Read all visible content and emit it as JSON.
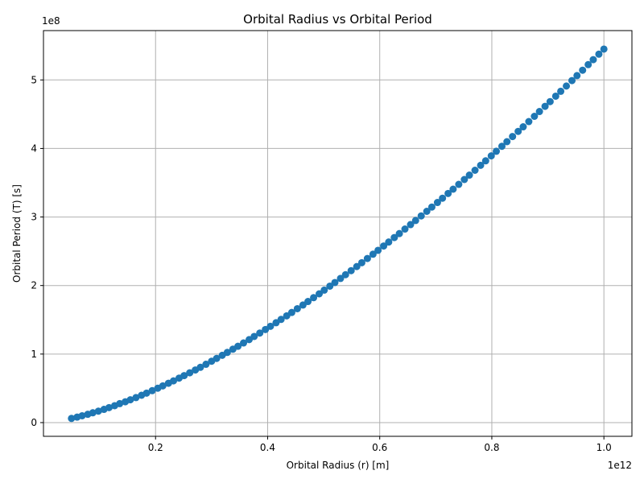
{
  "chart_data": {
    "type": "scatter",
    "title": "Orbital Radius vs Orbital Period",
    "xlabel": "Orbital Radius (r) [m]",
    "ylabel": "Orbital Period (T) [s]",
    "x_offset_text": "1e12",
    "y_offset_text": "1e8",
    "xlim": [
      0,
      1.05
    ],
    "ylim": [
      -0.2,
      5.72
    ],
    "x_scale_multiplier": 1000000000000.0,
    "y_scale_multiplier": 100000000.0,
    "xticks": [
      0.2,
      0.4,
      0.6,
      0.8,
      1.0
    ],
    "xtick_labels": [
      "0.2",
      "0.4",
      "0.6",
      "0.8",
      "1.0"
    ],
    "yticks": [
      0,
      1,
      2,
      3,
      4,
      5
    ],
    "ytick_labels": [
      "0",
      "1",
      "2",
      "3",
      "4",
      "5"
    ],
    "grid": true,
    "marker_color": "#1f77b4",
    "series": [
      {
        "x_start": 0.05,
        "x_end": 1.0,
        "n_points": 100,
        "relation": "T = 5.45 * x^1.5",
        "x": [
          0.05,
          0.06,
          0.069,
          0.079,
          0.088,
          0.098,
          0.108,
          0.117,
          0.127,
          0.136,
          0.146,
          0.155,
          0.165,
          0.175,
          0.184,
          0.194,
          0.204,
          0.213,
          0.223,
          0.232,
          0.242,
          0.251,
          0.261,
          0.271,
          0.28,
          0.29,
          0.3,
          0.309,
          0.319,
          0.328,
          0.338,
          0.347,
          0.357,
          0.367,
          0.376,
          0.386,
          0.396,
          0.405,
          0.415,
          0.424,
          0.434,
          0.443,
          0.453,
          0.463,
          0.472,
          0.482,
          0.492,
          0.501,
          0.511,
          0.52,
          0.53,
          0.539,
          0.549,
          0.559,
          0.568,
          0.578,
          0.588,
          0.597,
          0.607,
          0.616,
          0.626,
          0.635,
          0.645,
          0.655,
          0.664,
          0.674,
          0.684,
          0.693,
          0.703,
          0.712,
          0.722,
          0.731,
          0.741,
          0.751,
          0.76,
          0.77,
          0.78,
          0.789,
          0.799,
          0.808,
          0.818,
          0.827,
          0.837,
          0.847,
          0.856,
          0.866,
          0.876,
          0.885,
          0.895,
          0.904,
          0.914,
          0.923,
          0.933,
          0.943,
          0.952,
          0.962,
          0.972,
          0.981,
          0.991,
          1.0
        ],
        "y": [
          0.061,
          0.08,
          0.1,
          0.121,
          0.143,
          0.167,
          0.193,
          0.219,
          0.247,
          0.277,
          0.304,
          0.333,
          0.365,
          0.399,
          0.43,
          0.466,
          0.502,
          0.536,
          0.574,
          0.609,
          0.649,
          0.686,
          0.727,
          0.768,
          0.807,
          0.851,
          0.896,
          0.937,
          0.982,
          1.024,
          1.071,
          1.114,
          1.162,
          1.211,
          1.257,
          1.307,
          1.358,
          1.405,
          1.457,
          1.506,
          1.558,
          1.607,
          1.662,
          1.716,
          1.767,
          1.823,
          1.879,
          1.933,
          1.991,
          2.044,
          2.103,
          2.158,
          2.217,
          2.277,
          2.333,
          2.395,
          2.457,
          2.514,
          2.577,
          2.635,
          2.7,
          2.758,
          2.824,
          2.889,
          2.949,
          3.016,
          3.083,
          3.145,
          3.212,
          3.274,
          3.343,
          3.406,
          3.476,
          3.547,
          3.611,
          3.682,
          3.754,
          3.82,
          3.892,
          3.959,
          4.032,
          4.099,
          4.174,
          4.249,
          4.316,
          4.392,
          4.469,
          4.539,
          4.615,
          4.684,
          4.763,
          4.834,
          4.911,
          4.991,
          5.063,
          5.142,
          5.223,
          5.296,
          5.376,
          5.45
        ]
      }
    ]
  }
}
